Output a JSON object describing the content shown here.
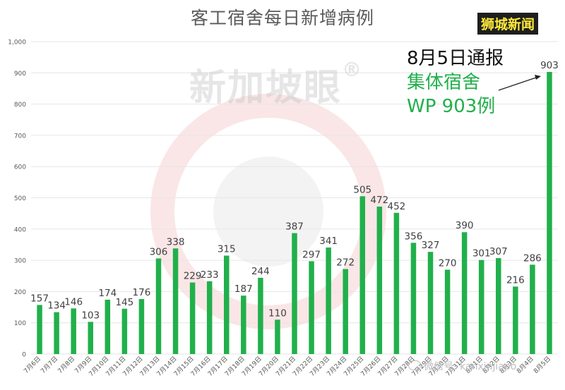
{
  "header": {
    "title": "客工宿舍每日新增病例",
    "brand": "狮城新闻"
  },
  "watermark": {
    "text": "新加坡眼",
    "mark": "®",
    "wechat": "微信号: kanxinjiapo"
  },
  "annotation": {
    "line1": "8月5日通报",
    "line2": "集体宿舍",
    "line3": "WP 903例"
  },
  "colors": {
    "bar": "#21b04b",
    "annotation_green": "#21b04b",
    "brand_bg": "#1e1e1e",
    "brand_text": "#ffeb3b",
    "grid": "#e6e6e6",
    "watermark_red": "#f4c6c6"
  },
  "chart_data": {
    "type": "bar",
    "title": "客工宿舍每日新增病例",
    "xlabel": "",
    "ylabel": "",
    "ylim": [
      0,
      1000
    ],
    "yticks": [
      "0",
      "100",
      "200",
      "300",
      "400",
      "500",
      "600",
      "700",
      "800",
      "900",
      "1,000"
    ],
    "grid": true,
    "legend": "none",
    "categories": [
      "7月6日",
      "7月7日",
      "7月8日",
      "7月9日",
      "7月10日",
      "7月11日",
      "7月12日",
      "7月13日",
      "7月14日",
      "7月15日",
      "7月16日",
      "7月17日",
      "7月18日",
      "7月19日",
      "7月20日",
      "7月21日",
      "7月22日",
      "7月23日",
      "7月24日",
      "7月25日",
      "7月26日",
      "7月27日",
      "7月28日",
      "7月29日",
      "7月30日",
      "7月31日",
      "8月1日",
      "8月2日",
      "8月3日",
      "8月4日",
      "8月5日"
    ],
    "values": [
      157,
      134,
      146,
      103,
      174,
      145,
      176,
      306,
      338,
      229,
      233,
      315,
      187,
      244,
      110,
      387,
      297,
      341,
      272,
      505,
      472,
      452,
      356,
      327,
      270,
      390,
      301,
      307,
      216,
      286,
      903
    ]
  }
}
